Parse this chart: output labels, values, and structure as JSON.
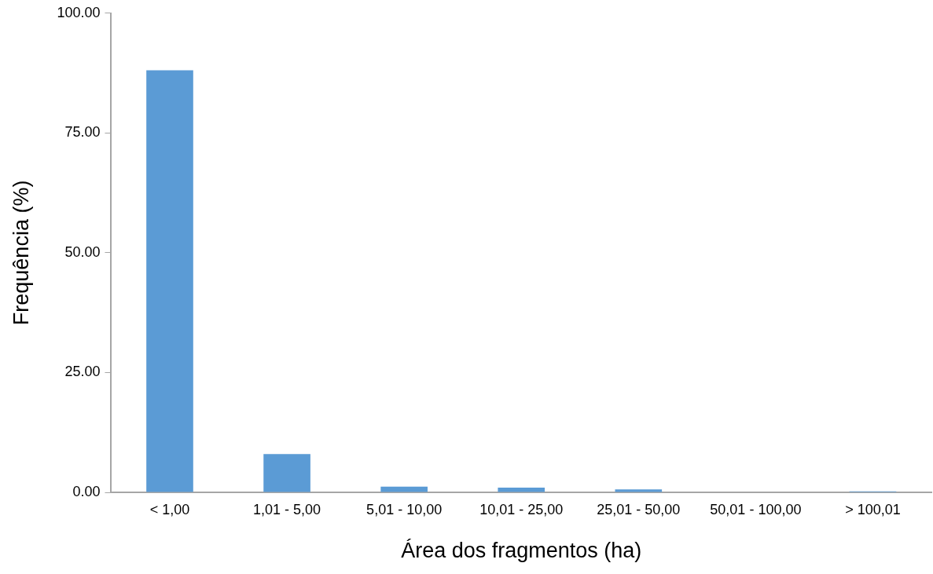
{
  "chart_data": {
    "type": "bar",
    "xlabel": "Área dos fragmentos (ha)",
    "ylabel": "Frequência (%)",
    "categories": [
      "< 1,00",
      "1,01 - 5,00",
      "5,01 - 10,00",
      "10,01 - 25,00",
      "25,01 - 50,00",
      "50,01 - 100,00",
      "> 100,01"
    ],
    "values": [
      88.1,
      8.0,
      1.2,
      1.0,
      0.6,
      0,
      0.2
    ],
    "color": "#5b9bd5",
    "ylim": [
      0,
      100
    ],
    "yticks": [
      {
        "value": 0,
        "label": "0.00"
      },
      {
        "value": 25,
        "label": "25.00"
      },
      {
        "value": 50,
        "label": "50.00"
      },
      {
        "value": 75,
        "label": "75.00"
      },
      {
        "value": 100,
        "label": "100.00"
      }
    ],
    "grid": false,
    "legend": false
  }
}
